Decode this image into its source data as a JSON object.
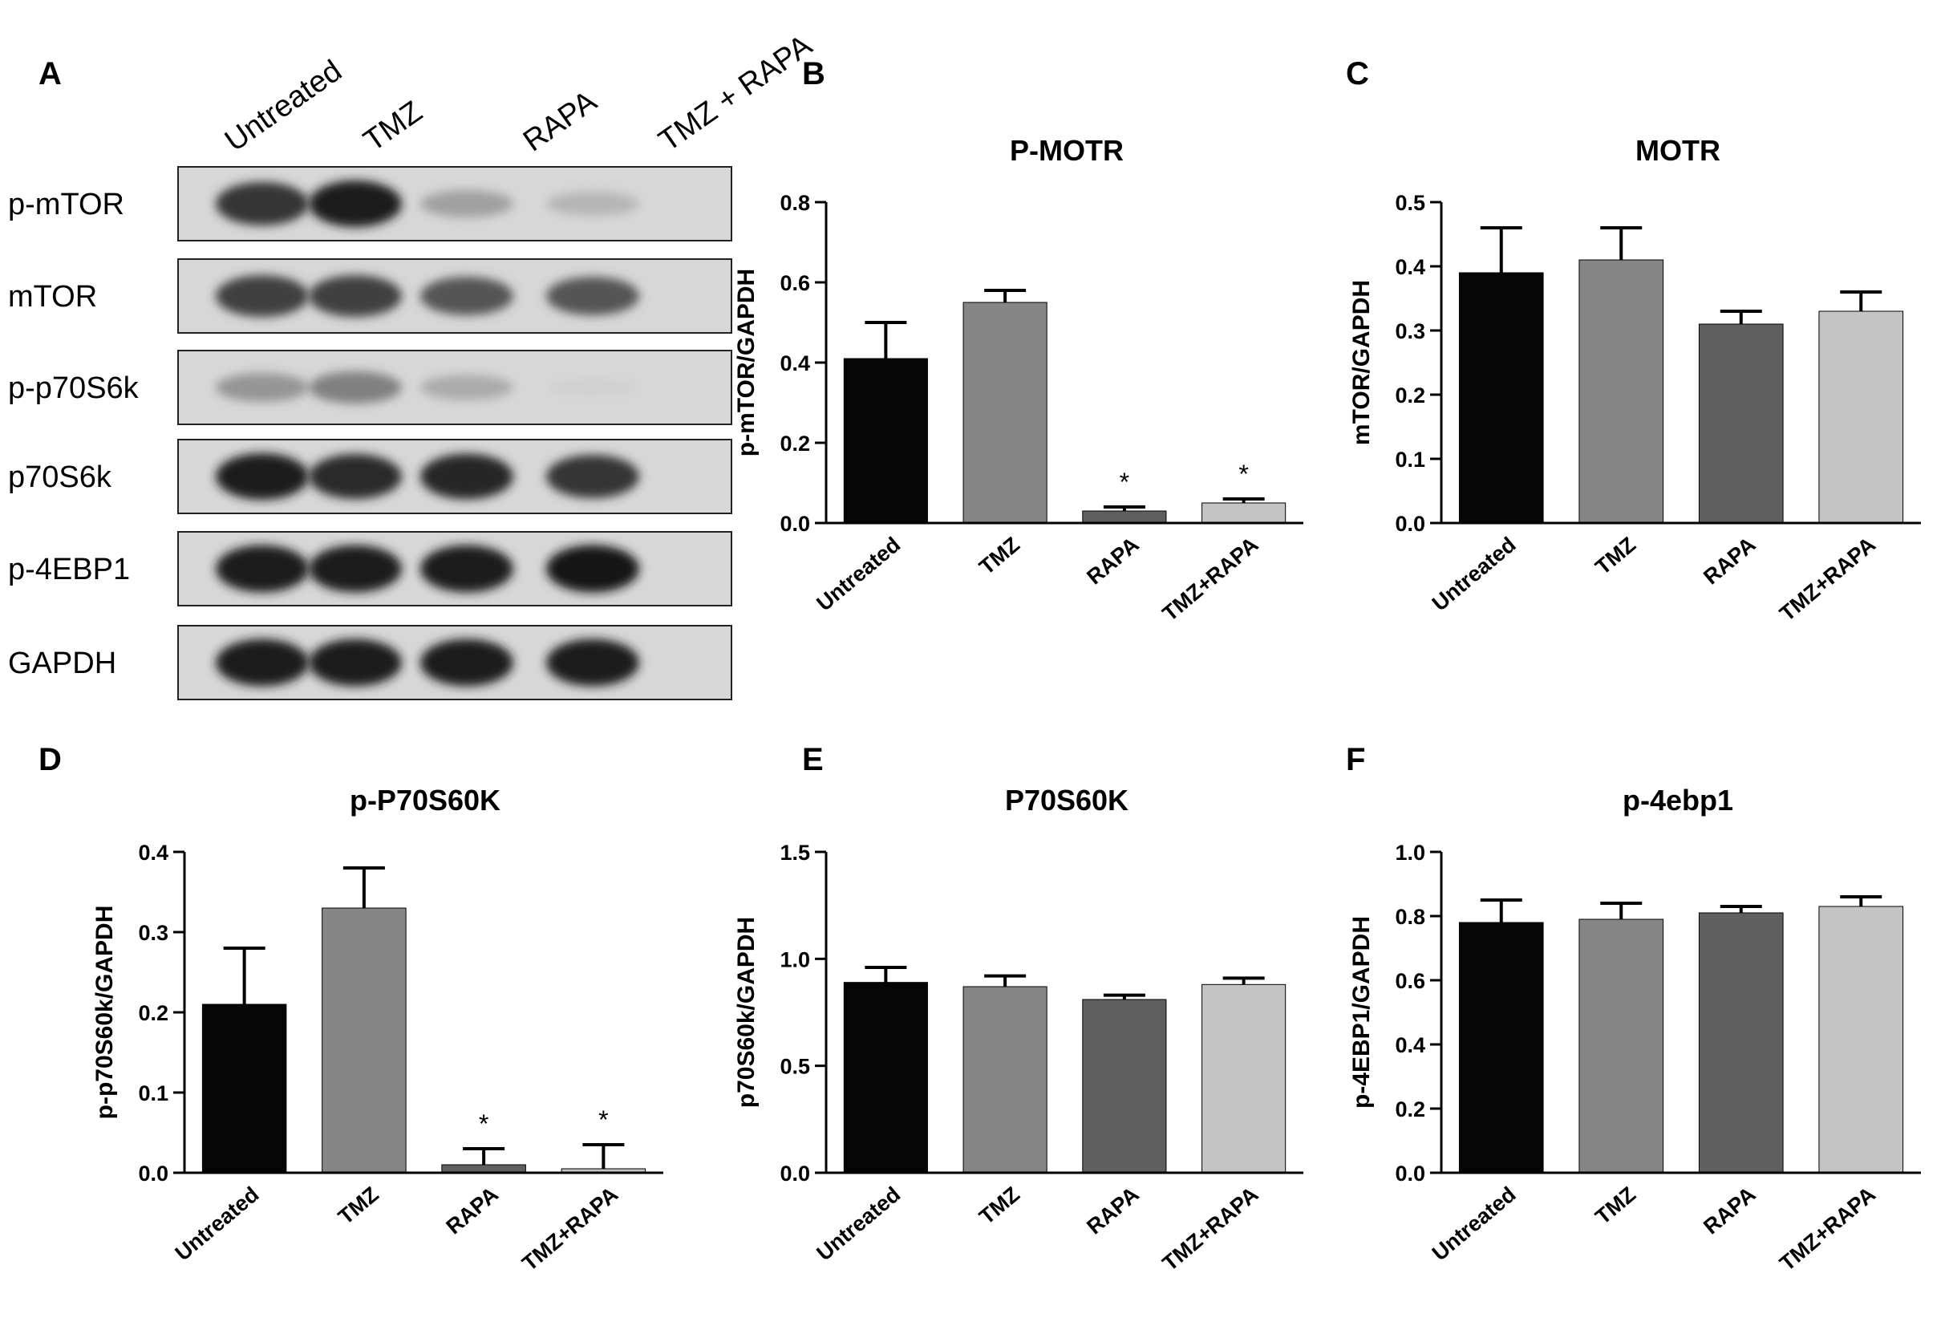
{
  "panel_letters": [
    "A",
    "B",
    "C",
    "D",
    "E",
    "F"
  ],
  "blot": {
    "lanes": [
      "Untreated",
      "TMZ",
      "RAPA",
      "TMZ + RAPA"
    ],
    "rows": [
      {
        "label": "p-mTOR",
        "intensity": [
          0.85,
          0.95,
          0.35,
          0.25
        ]
      },
      {
        "label": "mTOR",
        "intensity": [
          0.8,
          0.8,
          0.7,
          0.7
        ]
      },
      {
        "label": "p-p70S6k",
        "intensity": [
          0.4,
          0.5,
          0.3,
          0.12
        ]
      },
      {
        "label": "p70S6k",
        "intensity": [
          0.95,
          0.9,
          0.92,
          0.85
        ]
      },
      {
        "label": "p-4EBP1",
        "intensity": [
          0.97,
          0.97,
          0.97,
          0.98
        ]
      },
      {
        "label": "GAPDH",
        "intensity": [
          0.97,
          0.97,
          0.97,
          0.97
        ]
      }
    ]
  },
  "bar_colors": [
    "#050505",
    "#868686",
    "#5f5f5f",
    "#c4c4c4"
  ],
  "chart_data": [
    {
      "type": "bar",
      "title": "P-MOTR",
      "ylabel": "p-mTOR/GAPDH",
      "categories": [
        "Untreated",
        "TMZ",
        "RAPA",
        "TMZ+RAPA"
      ],
      "values": [
        0.41,
        0.55,
        0.03,
        0.05
      ],
      "errors": [
        0.09,
        0.03,
        0.01,
        0.01
      ],
      "significance": [
        "",
        "",
        "*",
        "*"
      ],
      "ylim": [
        0,
        0.8
      ],
      "yticks": [
        "0.0",
        "0.2",
        "0.4",
        "0.6",
        "0.8"
      ]
    },
    {
      "type": "bar",
      "title": "MOTR",
      "ylabel": "mTOR/GAPDH",
      "categories": [
        "Untreated",
        "TMZ",
        "RAPA",
        "TMZ+RAPA"
      ],
      "values": [
        0.39,
        0.41,
        0.31,
        0.33
      ],
      "errors": [
        0.07,
        0.05,
        0.02,
        0.03
      ],
      "significance": [
        "",
        "",
        "",
        ""
      ],
      "ylim": [
        0,
        0.5
      ],
      "yticks": [
        "0.0",
        "0.1",
        "0.2",
        "0.3",
        "0.4",
        "0.5"
      ]
    },
    {
      "type": "bar",
      "title": "p-P70S60K",
      "ylabel": "p-p70S60k/GAPDH",
      "categories": [
        "Untreated",
        "TMZ",
        "RAPA",
        "TMZ+RAPA"
      ],
      "values": [
        0.21,
        0.33,
        0.01,
        0.005
      ],
      "errors": [
        0.07,
        0.05,
        0.02,
        0.03
      ],
      "significance": [
        "",
        "",
        "*",
        "*"
      ],
      "ylim": [
        0,
        0.4
      ],
      "yticks": [
        "0.0",
        "0.1",
        "0.2",
        "0.3",
        "0.4"
      ]
    },
    {
      "type": "bar",
      "title": "P70S60K",
      "ylabel": "p70S60k/GAPDH",
      "categories": [
        "Untreated",
        "TMZ",
        "RAPA",
        "TMZ+RAPA"
      ],
      "values": [
        0.89,
        0.87,
        0.81,
        0.88
      ],
      "errors": [
        0.07,
        0.05,
        0.02,
        0.03
      ],
      "significance": [
        "",
        "",
        "",
        ""
      ],
      "ylim": [
        0,
        1.5
      ],
      "yticks": [
        "0.0",
        "0.5",
        "1.0",
        "1.5"
      ]
    },
    {
      "type": "bar",
      "title": "p-4ebp1",
      "ylabel": "p-4EBP1/GAPDH",
      "categories": [
        "Untreated",
        "TMZ",
        "RAPA",
        "TMZ+RAPA"
      ],
      "values": [
        0.78,
        0.79,
        0.81,
        0.83
      ],
      "errors": [
        0.07,
        0.05,
        0.02,
        0.03
      ],
      "significance": [
        "",
        "",
        "",
        ""
      ],
      "ylim": [
        0,
        1.0
      ],
      "yticks": [
        "0.0",
        "0.2",
        "0.4",
        "0.6",
        "0.8",
        "1.0"
      ]
    }
  ]
}
